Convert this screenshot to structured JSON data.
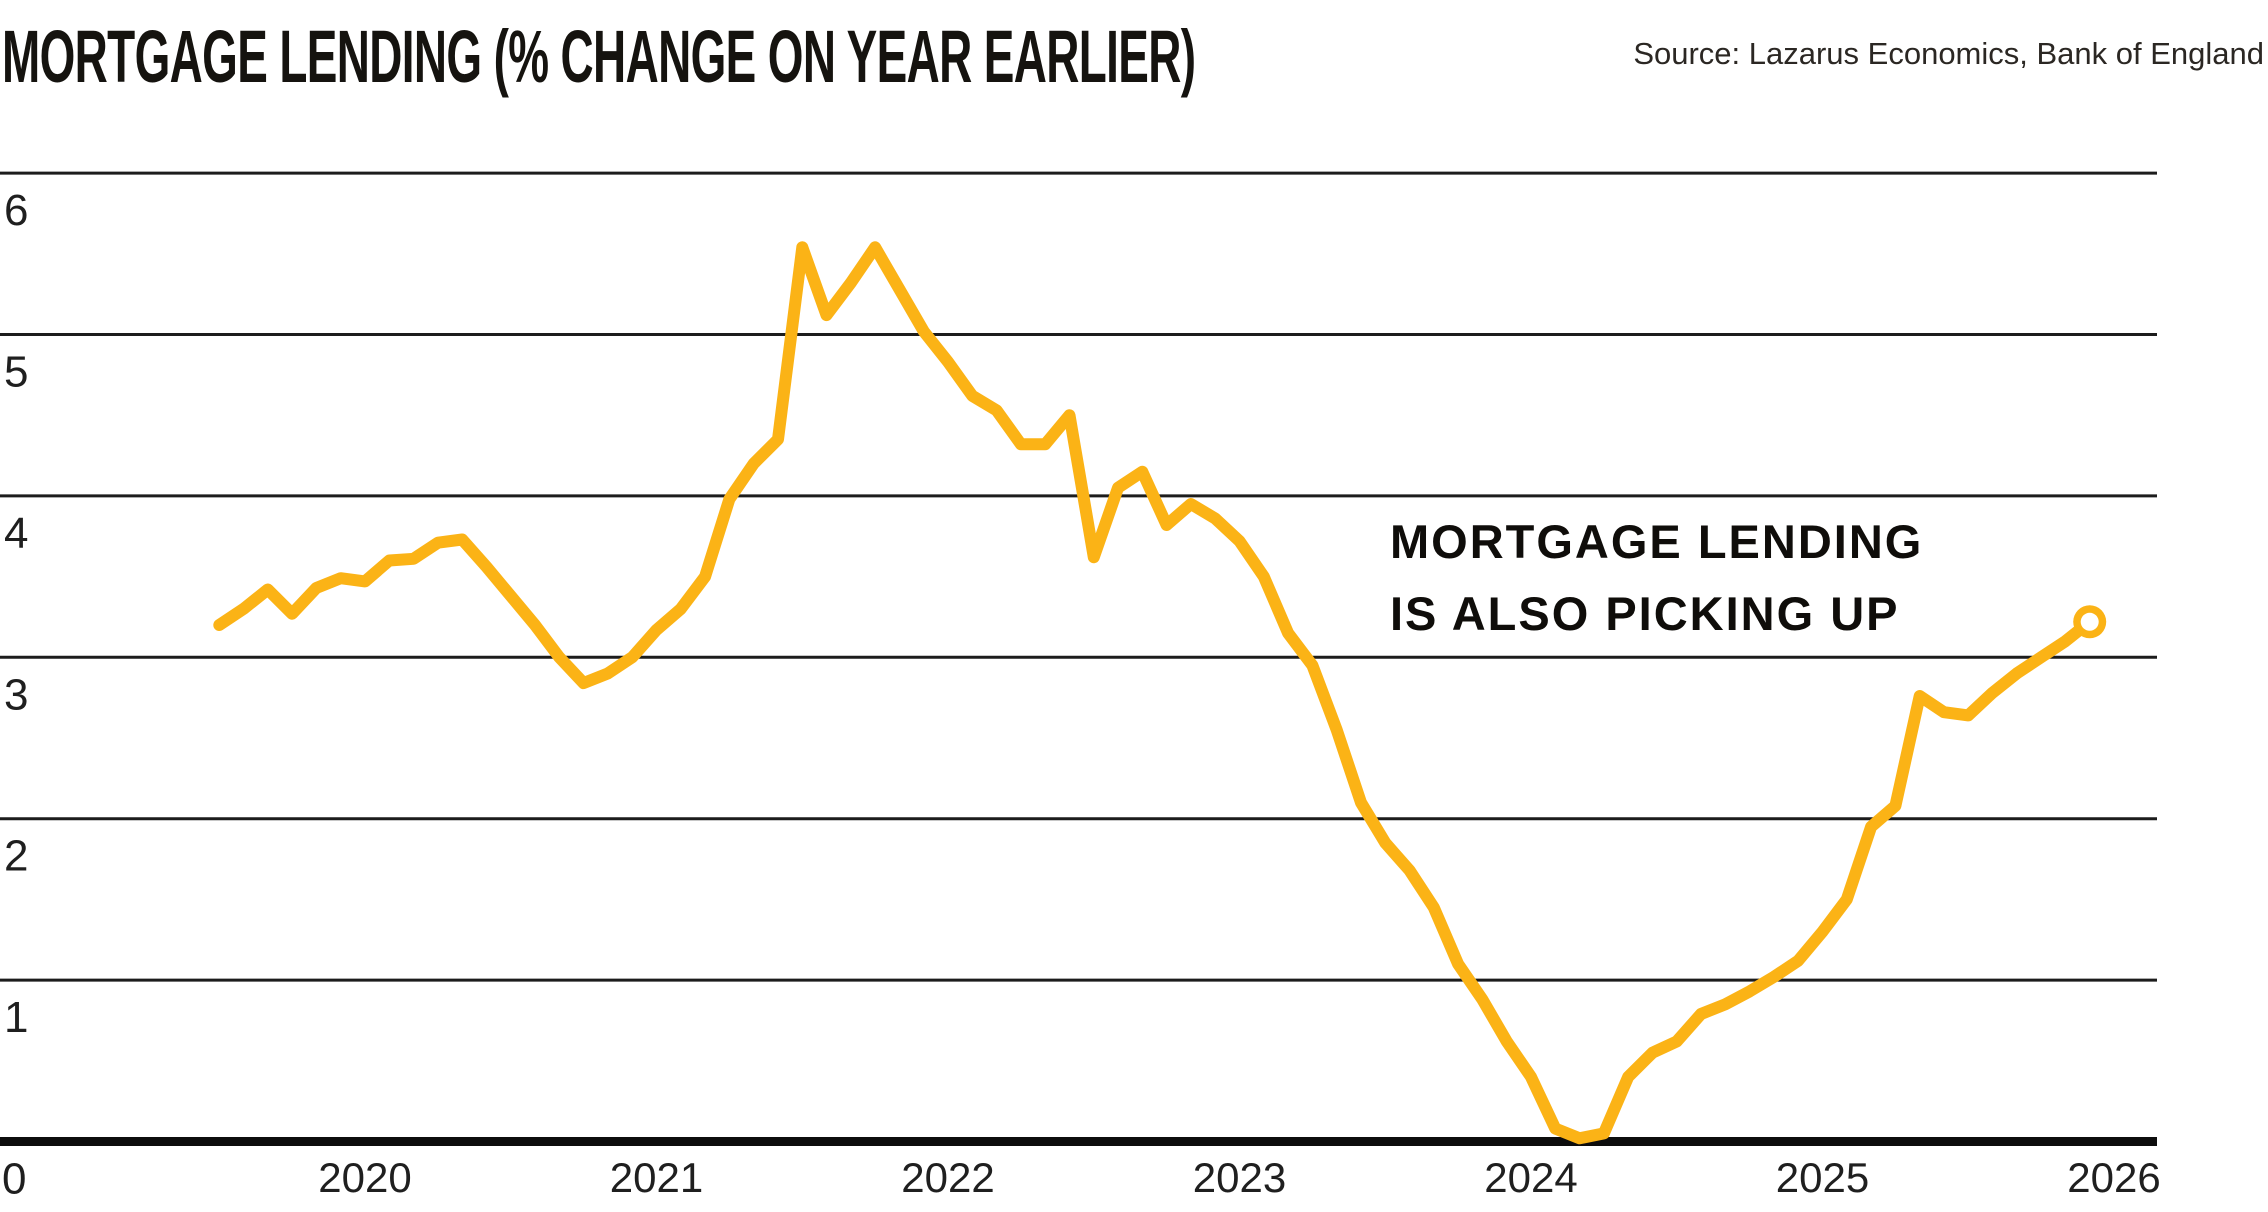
{
  "header": {
    "title": "MORTGAGE LENDING (% CHANGE ON YEAR EARLIER)",
    "source": "Source: Lazarus Economics, Bank of England"
  },
  "annotation": {
    "line1": "MORTGAGE LENDING",
    "line2": "IS ALSO PICKING UP"
  },
  "colors": {
    "line": "#FBB316",
    "grid": "#1c1c1c",
    "axis": "#0d0d0d",
    "tick_text": "#1f1f1f",
    "marker_ring": "#FBB316",
    "marker_fill": "#ffffff",
    "background": "#ffffff"
  },
  "chart_data": {
    "type": "line",
    "title": "MORTGAGE LENDING (% CHANGE ON YEAR EARLIER)",
    "xlabel": "",
    "ylabel": "% change on year earlier",
    "grid": true,
    "legend": false,
    "ylim": [
      0,
      6.5
    ],
    "yticks": [
      0,
      1,
      2,
      3,
      4,
      5,
      6
    ],
    "xticks": [
      "2020",
      "2021",
      "2022",
      "2023",
      "2024",
      "2025",
      "2026"
    ],
    "end_marker_value": 3.22,
    "end_marker_x": "2025-12",
    "x": [
      "2019-07",
      "2019-08",
      "2019-09",
      "2019-10",
      "2019-11",
      "2019-12",
      "2020-01",
      "2020-02",
      "2020-03",
      "2020-04",
      "2020-05",
      "2020-06",
      "2020-07",
      "2020-08",
      "2020-09",
      "2020-10",
      "2020-11",
      "2020-12",
      "2021-01",
      "2021-02",
      "2021-03",
      "2021-04",
      "2021-05",
      "2021-06",
      "2021-07",
      "2021-08",
      "2021-09",
      "2021-10",
      "2021-11",
      "2021-12",
      "2022-01",
      "2022-02",
      "2022-03",
      "2022-04",
      "2022-05",
      "2022-06",
      "2022-07",
      "2022-08",
      "2022-09",
      "2022-10",
      "2022-11",
      "2022-12",
      "2023-01",
      "2023-02",
      "2023-03",
      "2023-04",
      "2023-05",
      "2023-06",
      "2023-07",
      "2023-08",
      "2023-09",
      "2023-10",
      "2023-11",
      "2023-12",
      "2024-01",
      "2024-02",
      "2024-03",
      "2024-04",
      "2024-05",
      "2024-06",
      "2024-07",
      "2024-08",
      "2024-09",
      "2024-10",
      "2024-11",
      "2024-12",
      "2025-01",
      "2025-02",
      "2025-03",
      "2025-04",
      "2025-05",
      "2025-06",
      "2025-07",
      "2025-08",
      "2025-09",
      "2025-10",
      "2025-11",
      "2025-12"
    ],
    "values": [
      3.2,
      3.3,
      3.42,
      3.27,
      3.43,
      3.49,
      3.47,
      3.6,
      3.61,
      3.71,
      3.73,
      3.56,
      3.38,
      3.2,
      3.0,
      2.84,
      2.9,
      3.0,
      3.17,
      3.3,
      3.5,
      3.98,
      4.2,
      4.35,
      5.54,
      5.12,
      5.32,
      5.54,
      5.28,
      5.02,
      4.83,
      4.62,
      4.53,
      4.32,
      4.32,
      4.5,
      3.62,
      4.05,
      4.15,
      3.82,
      3.95,
      3.86,
      3.72,
      3.5,
      3.15,
      2.95,
      2.55,
      2.1,
      1.85,
      1.68,
      1.45,
      1.1,
      0.88,
      0.62,
      0.4,
      0.08,
      0.02,
      0.05,
      0.4,
      0.55,
      0.62,
      0.79,
      0.85,
      0.93,
      1.02,
      1.12,
      1.3,
      1.5,
      1.95,
      2.08,
      2.76,
      2.66,
      2.64,
      2.78,
      2.9,
      3.0,
      3.1,
      3.22
    ]
  }
}
